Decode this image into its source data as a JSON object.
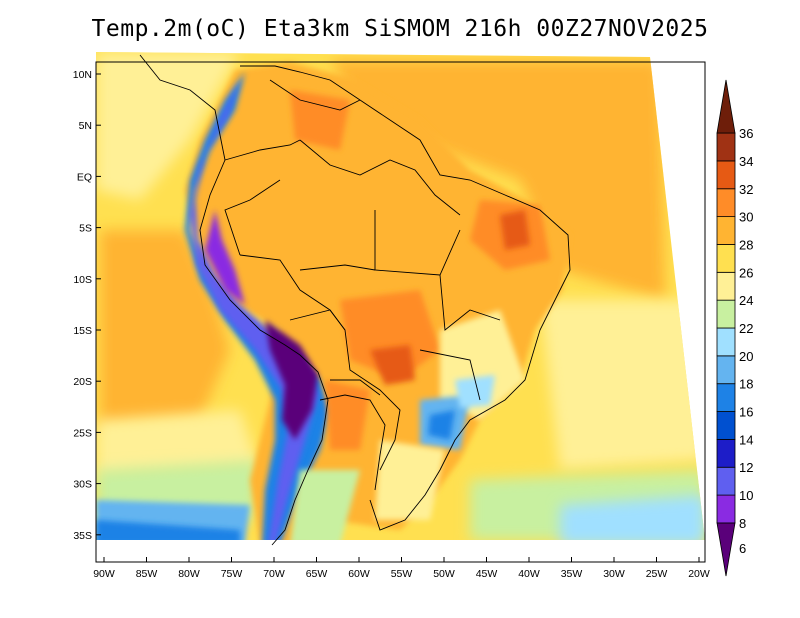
{
  "title": "Temp.2m(oC) Eta3km SiSMOM 216h 00Z27NOV2025",
  "map": {
    "variable": "2 m air temperature",
    "units": "oC",
    "model": "Eta3km",
    "lon_range": [
      -90,
      -20
    ],
    "lat_range": [
      -38,
      12
    ],
    "lat_ticks": [
      {
        "value": 10,
        "label": "10N"
      },
      {
        "value": 5,
        "label": "5N"
      },
      {
        "value": 0,
        "label": "EQ"
      },
      {
        "value": -5,
        "label": "5S"
      },
      {
        "value": -10,
        "label": "10S"
      },
      {
        "value": -15,
        "label": "15S"
      },
      {
        "value": -20,
        "label": "20S"
      },
      {
        "value": -25,
        "label": "25S"
      },
      {
        "value": -30,
        "label": "30S"
      },
      {
        "value": -35,
        "label": "35S"
      }
    ],
    "lon_ticks": [
      {
        "value": -90,
        "label": "90W"
      },
      {
        "value": -85,
        "label": "85W"
      },
      {
        "value": -80,
        "label": "80W"
      },
      {
        "value": -75,
        "label": "75W"
      },
      {
        "value": -70,
        "label": "70W"
      },
      {
        "value": -65,
        "label": "65W"
      },
      {
        "value": -60,
        "label": "60W"
      },
      {
        "value": -55,
        "label": "55W"
      },
      {
        "value": -50,
        "label": "50W"
      },
      {
        "value": -45,
        "label": "45W"
      },
      {
        "value": -40,
        "label": "40W"
      },
      {
        "value": -35,
        "label": "35W"
      },
      {
        "value": -30,
        "label": "30W"
      },
      {
        "value": -25,
        "label": "25W"
      },
      {
        "value": -20,
        "label": "20W"
      }
    ]
  },
  "colorbar": {
    "min": 6,
    "max": 36,
    "levels": [
      6,
      8,
      10,
      12,
      14,
      16,
      18,
      20,
      22,
      24,
      26,
      28,
      30,
      32,
      34,
      36
    ],
    "colors": [
      "#5a007a",
      "#8a2be2",
      "#5f5ff0",
      "#1d1dc8",
      "#0050d0",
      "#1e82e6",
      "#64b4f0",
      "#a0e0ff",
      "#c8f0a0",
      "#fff096",
      "#ffe050",
      "#ffb432",
      "#ff8c28",
      "#e65a14",
      "#a03214",
      "#6e1e0a"
    ]
  }
}
